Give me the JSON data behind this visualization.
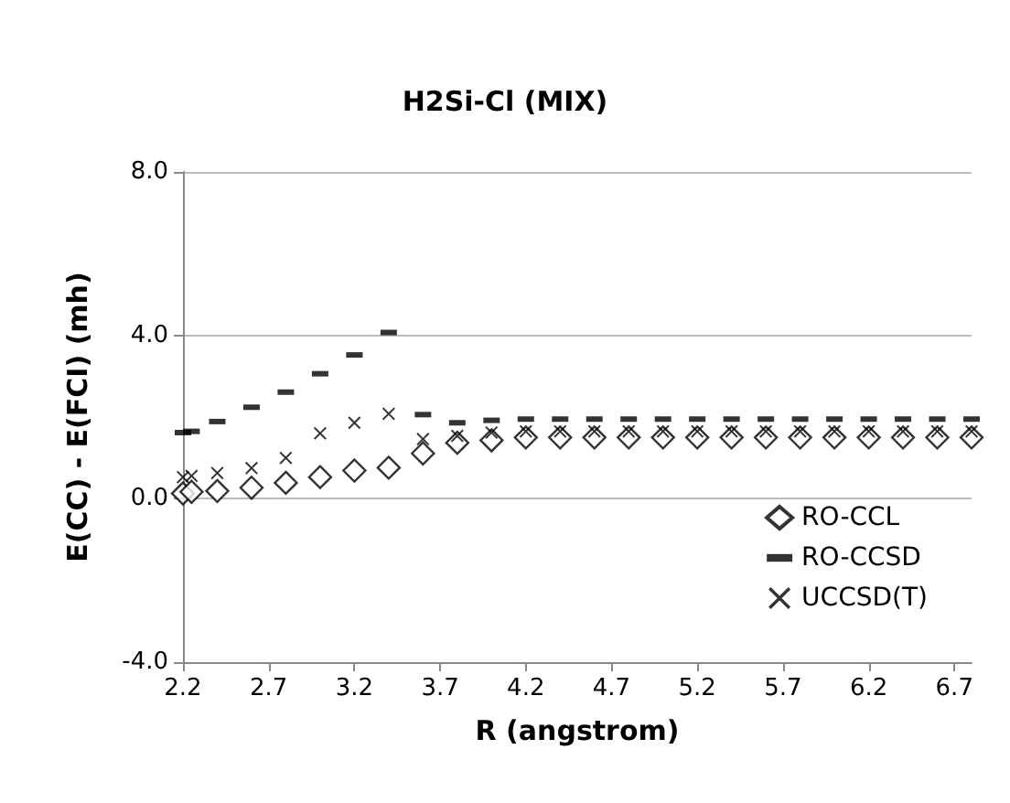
{
  "chart_data": {
    "type": "scatter",
    "title": "H2Si-Cl (MIX)",
    "xlabel": "R (angstrom)",
    "ylabel": "E(CC) - E(FCI) (mh)",
    "x": [
      2.2,
      2.25,
      2.4,
      2.6,
      2.8,
      3.0,
      3.2,
      3.4,
      3.6,
      3.8,
      4.0,
      4.2,
      4.4,
      4.6,
      4.8,
      5.0,
      5.2,
      5.4,
      5.6,
      5.8,
      6.0,
      6.2,
      6.4,
      6.6,
      6.8
    ],
    "series": [
      {
        "name": "RO-CCL",
        "color": "#000000",
        "marker": "diamond",
        "values": [
          0.13,
          0.17,
          0.19,
          0.27,
          0.39,
          0.53,
          0.69,
          0.76,
          1.11,
          1.37,
          1.43,
          1.5,
          1.5,
          1.5,
          1.5,
          1.5,
          1.5,
          1.5,
          1.5,
          1.5,
          1.5,
          1.5,
          1.5,
          1.5,
          1.5
        ]
      },
      {
        "name": "RO-CCSD",
        "color": "#000000",
        "marker": "square",
        "values": [
          1.62,
          1.65,
          1.89,
          2.24,
          2.61,
          3.06,
          3.52,
          4.07,
          2.06,
          1.86,
          1.92,
          1.95,
          1.95,
          1.95,
          1.95,
          1.95,
          1.95,
          1.95,
          1.95,
          1.95,
          1.95,
          1.95,
          1.95,
          1.95,
          1.95
        ]
      },
      {
        "name": "UCCSD(T)",
        "color": "#000000",
        "marker": "cross",
        "values": [
          0.53,
          0.56,
          0.63,
          0.75,
          1.0,
          1.6,
          1.86,
          2.08,
          1.46,
          1.54,
          1.62,
          1.65,
          1.65,
          1.65,
          1.65,
          1.65,
          1.65,
          1.65,
          1.65,
          1.65,
          1.65,
          1.65,
          1.65,
          1.65,
          1.65
        ]
      }
    ],
    "xlim": [
      2.2,
      6.8
    ],
    "xticks": [
      2.2,
      2.7,
      3.2,
      3.7,
      4.2,
      4.7,
      5.2,
      5.7,
      6.2,
      6.7
    ],
    "ylim": [
      -4,
      8
    ],
    "yticks": [
      {
        "value": -4,
        "label": "-4.0"
      },
      {
        "value": 0,
        "label": "0.0"
      },
      {
        "value": 4,
        "label": "4.0"
      },
      {
        "value": 8,
        "label": "8.0"
      }
    ],
    "grid": "y",
    "legend": "bottom right"
  }
}
